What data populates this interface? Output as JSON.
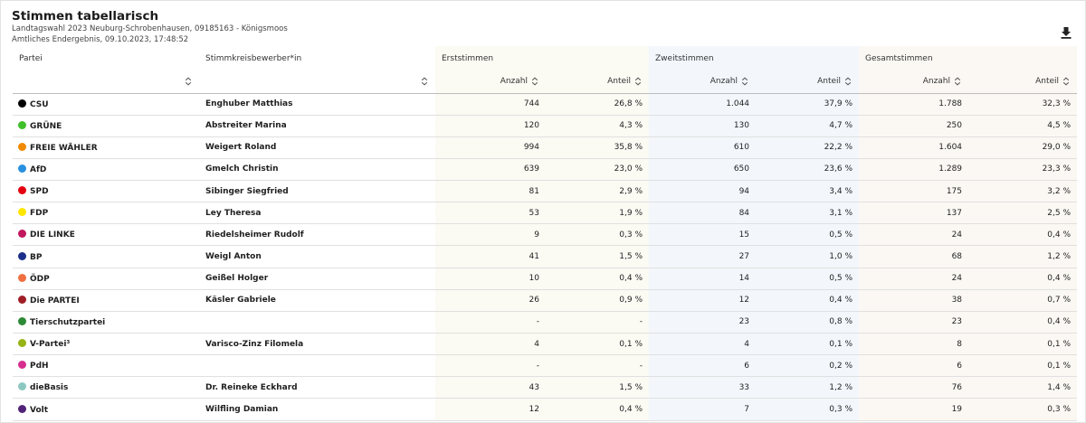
{
  "header": {
    "title": "Stimmen tabellarisch",
    "subtitle1": "Landtagswahl 2023 Neuburg-Schrobenhausen, 09185163 - Königsmoos",
    "subtitle2": "Amtliches Endergebnis, 09.10.2023, 17:48:52",
    "download_icon": "download-icon"
  },
  "table": {
    "col_partei": "Partei",
    "col_bewerber": "Stimmkreisbewerber*in",
    "group_erst": "Erststimmen",
    "group_zweit": "Zweitstimmen",
    "group_gesamt": "Gesamtstimmen",
    "sub_anzahl": "Anzahl",
    "sub_anteil": "Anteil",
    "rows": [
      {
        "partei": "CSU",
        "color": "#000000",
        "bewerber": "Enghuber Matthias",
        "e_anz": "744",
        "e_ant": "26,8 %",
        "z_anz": "1.044",
        "z_ant": "37,9 %",
        "g_anz": "1.788",
        "g_ant": "32,3 %"
      },
      {
        "partei": "GRÜNE",
        "color": "#3fbf2a",
        "bewerber": "Abstreiter Marina",
        "e_anz": "120",
        "e_ant": "4,3 %",
        "z_anz": "130",
        "z_ant": "4,7 %",
        "g_anz": "250",
        "g_ant": "4,5 %"
      },
      {
        "partei": "FREIE WÄHLER",
        "color": "#f08a00",
        "bewerber": "Weigert Roland",
        "e_anz": "994",
        "e_ant": "35,8 %",
        "z_anz": "610",
        "z_ant": "22,2 %",
        "g_anz": "1.604",
        "g_ant": "29,0 %"
      },
      {
        "partei": "AfD",
        "color": "#2a90e0",
        "bewerber": "Gmelch Christin",
        "e_anz": "639",
        "e_ant": "23,0 %",
        "z_anz": "650",
        "z_ant": "23,6 %",
        "g_anz": "1.289",
        "g_ant": "23,3 %"
      },
      {
        "partei": "SPD",
        "color": "#e3000f",
        "bewerber": "Sibinger Siegfried",
        "e_anz": "81",
        "e_ant": "2,9 %",
        "z_anz": "94",
        "z_ant": "3,4 %",
        "g_anz": "175",
        "g_ant": "3,2 %"
      },
      {
        "partei": "FDP",
        "color": "#ffe600",
        "bewerber": "Ley Theresa",
        "e_anz": "53",
        "e_ant": "1,9 %",
        "z_anz": "84",
        "z_ant": "3,1 %",
        "g_anz": "137",
        "g_ant": "2,5 %"
      },
      {
        "partei": "DIE LINKE",
        "color": "#c0175e",
        "bewerber": "Riedelsheimer Rudolf",
        "e_anz": "9",
        "e_ant": "0,3 %",
        "z_anz": "15",
        "z_ant": "0,5 %",
        "g_anz": "24",
        "g_ant": "0,4 %"
      },
      {
        "partei": "BP",
        "color": "#1b2f8a",
        "bewerber": "Weigl Anton",
        "e_anz": "41",
        "e_ant": "1,5 %",
        "z_anz": "27",
        "z_ant": "1,0 %",
        "g_anz": "68",
        "g_ant": "1,2 %"
      },
      {
        "partei": "ÖDP",
        "color": "#f07042",
        "bewerber": "Geißel Holger",
        "e_anz": "10",
        "e_ant": "0,4 %",
        "z_anz": "14",
        "z_ant": "0,5 %",
        "g_anz": "24",
        "g_ant": "0,4 %"
      },
      {
        "partei": "Die PARTEI",
        "color": "#a01e26",
        "bewerber": "Käsler Gabriele",
        "e_anz": "26",
        "e_ant": "0,9 %",
        "z_anz": "12",
        "z_ant": "0,4 %",
        "g_anz": "38",
        "g_ant": "0,7 %"
      },
      {
        "partei": "Tierschutzpartei",
        "color": "#2d8a36",
        "bewerber": "",
        "e_anz": "-",
        "e_ant": "-",
        "z_anz": "23",
        "z_ant": "0,8 %",
        "g_anz": "23",
        "g_ant": "0,4 %"
      },
      {
        "partei": "V-Partei³",
        "color": "#96b414",
        "bewerber": "Varisco-Zinz Filomela",
        "e_anz": "4",
        "e_ant": "0,1 %",
        "z_anz": "4",
        "z_ant": "0,1 %",
        "g_anz": "8",
        "g_ant": "0,1 %"
      },
      {
        "partei": "PdH",
        "color": "#d62e8f",
        "bewerber": "",
        "e_anz": "-",
        "e_ant": "-",
        "z_anz": "6",
        "z_ant": "0,2 %",
        "g_anz": "6",
        "g_ant": "0,1 %"
      },
      {
        "partei": "dieBasis",
        "color": "#8cc8c0",
        "bewerber": "Dr. Reineke Eckhard",
        "e_anz": "43",
        "e_ant": "1,5 %",
        "z_anz": "33",
        "z_ant": "1,2 %",
        "g_anz": "76",
        "g_ant": "1,4 %"
      },
      {
        "partei": "Volt",
        "color": "#502379",
        "bewerber": "Wilfling Damian",
        "e_anz": "12",
        "e_ant": "0,4 %",
        "z_anz": "7",
        "z_ant": "0,3 %",
        "g_anz": "19",
        "g_ant": "0,3 %"
      }
    ]
  }
}
